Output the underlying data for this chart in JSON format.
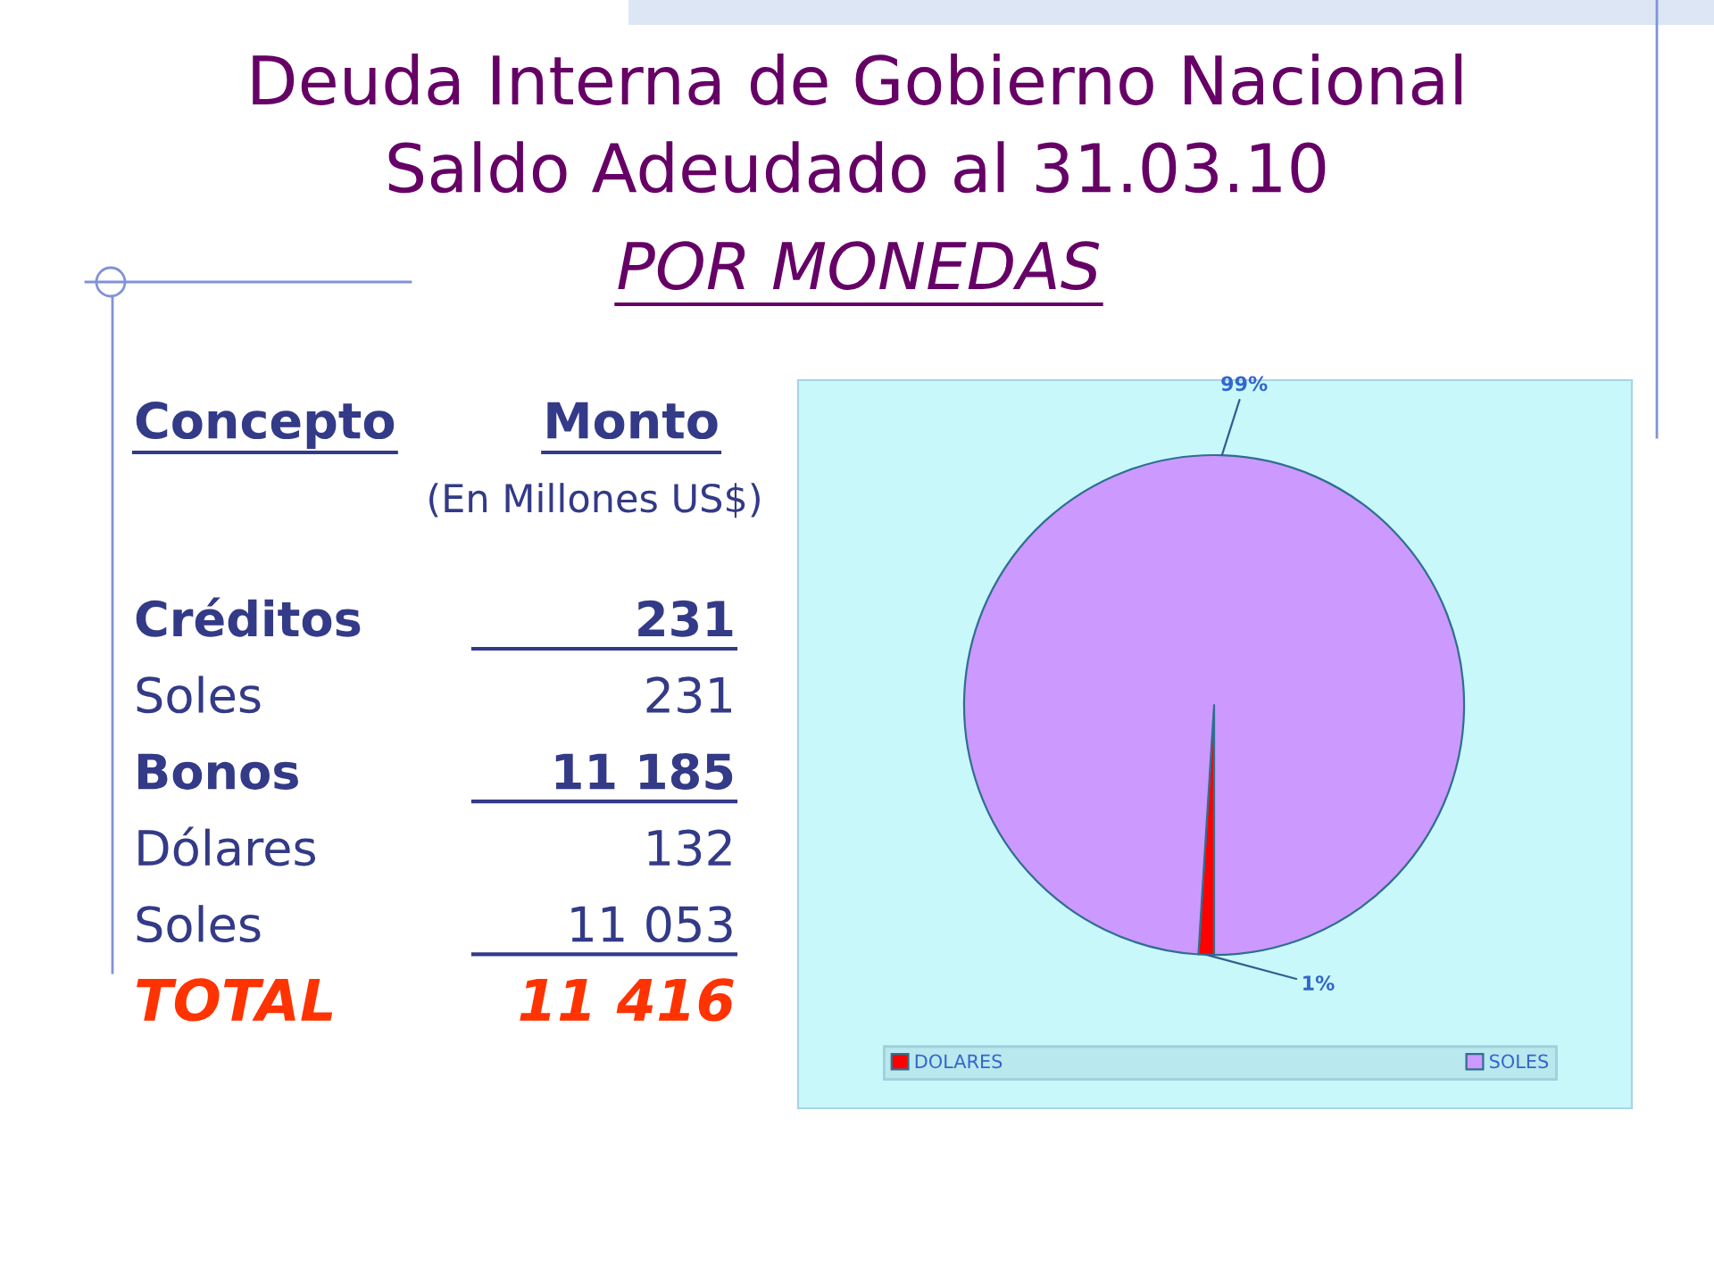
{
  "chart_data": [
    {
      "type": "other",
      "title": "Deuda Interna de Gobierno Nacional\nSaldo Adeudado al 31.03.10",
      "subtitle": "POR MONEDAS",
      "annotations": [
        "Concepto",
        "Monto",
        "(En Millones US$)"
      ],
      "categories": [
        "Créditos",
        "Soles",
        "Bonos",
        "Dólares",
        "Soles",
        "TOTAL"
      ],
      "values": [
        231,
        231,
        11185,
        132,
        11053,
        11416
      ],
      "value_labels": [
        "231",
        "231",
        "11 185",
        "132",
        "11 053",
        "11 416"
      ]
    },
    {
      "type": "pie",
      "categories": [
        "DOLARES",
        "SOLES"
      ],
      "values": [
        1,
        99
      ],
      "colors": [
        "#ff0000",
        "#cc99ff"
      ],
      "value_labels": [
        "1%",
        "99%"
      ],
      "legend": "bottom"
    }
  ]
}
